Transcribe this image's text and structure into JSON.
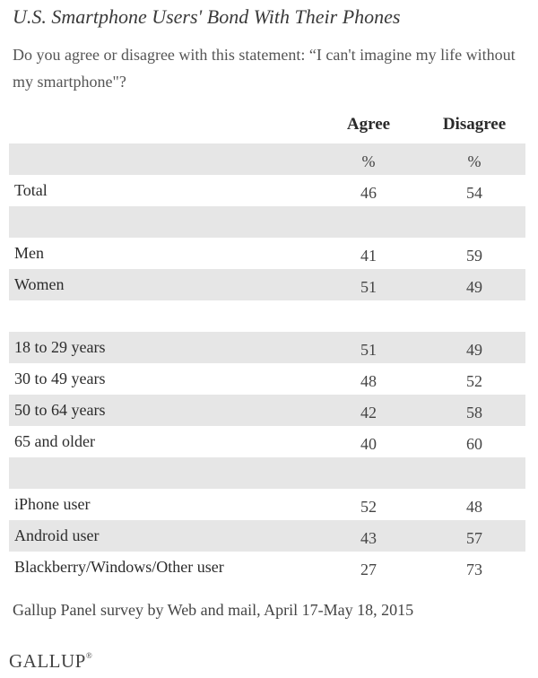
{
  "title": "U.S. Smartphone Users' Bond With Their Phones",
  "question": "Do you agree or disagree with this statement: “I can't imagine my life without my smartphone\"?",
  "columns": {
    "agree": "Agree",
    "disagree": "Disagree"
  },
  "rows": [
    {
      "label": "",
      "agree": "%",
      "disagree": "%"
    },
    {
      "label": "Total",
      "agree": "46",
      "disagree": "54"
    },
    {
      "label": "",
      "agree": "",
      "disagree": ""
    },
    {
      "label": "Men",
      "agree": "41",
      "disagree": "59"
    },
    {
      "label": "Women",
      "agree": "51",
      "disagree": "49"
    },
    {
      "label": "",
      "agree": "",
      "disagree": ""
    },
    {
      "label": "18 to 29 years",
      "agree": "51",
      "disagree": "49"
    },
    {
      "label": "30 to 49 years",
      "agree": "48",
      "disagree": "52"
    },
    {
      "label": "50 to 64 years",
      "agree": "42",
      "disagree": "58"
    },
    {
      "label": "65 and older",
      "agree": "40",
      "disagree": "60"
    },
    {
      "label": "",
      "agree": "",
      "disagree": ""
    },
    {
      "label": "iPhone user",
      "agree": "52",
      "disagree": "48"
    },
    {
      "label": "Android user",
      "agree": "43",
      "disagree": "57"
    },
    {
      "label": "Blackberry/Windows/Other user",
      "agree": "27",
      "disagree": "73"
    }
  ],
  "footer": "Gallup Panel survey by Web and mail, April 17-May 18, 2015",
  "logo": {
    "text": "GALLUP",
    "mark": "®"
  },
  "colors": {
    "shade": "#e6e6e6",
    "text": "#2b2b2b"
  }
}
